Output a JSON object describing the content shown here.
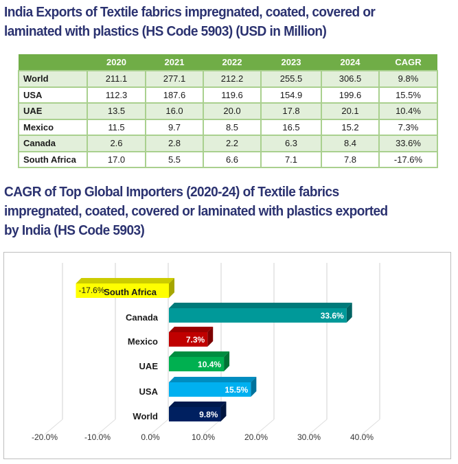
{
  "table_section": {
    "title_line1": "India Exports of Textile fabrics impregnated, coated, covered or",
    "title_line2": "laminated with plastics (HS Code 5903) (USD in Million)",
    "columns": [
      "",
      "2020",
      "2021",
      "2022",
      "2023",
      "2024",
      "CAGR"
    ],
    "rows": [
      {
        "label": "World",
        "values": [
          "211.1",
          "277.1",
          "212.2",
          "255.5",
          "306.5",
          "9.8%"
        ]
      },
      {
        "label": "USA",
        "values": [
          "112.3",
          "187.6",
          "119.6",
          "154.9",
          "199.6",
          "15.5%"
        ]
      },
      {
        "label": "UAE",
        "values": [
          "13.5",
          "16.0",
          "20.0",
          "17.8",
          "20.1",
          "10.4%"
        ]
      },
      {
        "label": "Mexico",
        "values": [
          "11.5",
          "9.7",
          "8.5",
          "16.5",
          "15.2",
          "7.3%"
        ]
      },
      {
        "label": "Canada",
        "values": [
          "2.6",
          "2.8",
          "2.2",
          "6.3",
          "8.4",
          "33.6%"
        ]
      },
      {
        "label": "South Africa",
        "values": [
          "17.0",
          "5.5",
          "6.6",
          "7.1",
          "7.8",
          "-17.6%"
        ]
      }
    ],
    "colors": {
      "header_bg": "#70ad47",
      "header_text": "#ffffff",
      "band": "#e2efda",
      "border": "#a9d08e"
    }
  },
  "chart_section": {
    "title_line1": "CAGR of Top Global Importers (2020-24) of Textile fabrics",
    "title_line2": "impregnated, coated, covered or laminated with plastics exported",
    "title_line3": "by India (HS Code 5903)"
  },
  "chart_data": {
    "type": "bar",
    "orientation": "horizontal",
    "style": "3d",
    "title": "CAGR of Top Global Importers (2020-24) of Textile fabrics impregnated, coated, covered or laminated with plastics exported by India (HS Code 5903)",
    "categories": [
      "South Africa",
      "Canada",
      "Mexico",
      "UAE",
      "USA",
      "World"
    ],
    "values": [
      -17.6,
      33.6,
      7.3,
      10.4,
      15.5,
      9.8
    ],
    "data_labels": [
      "-17.6%",
      "33.6%",
      "7.3%",
      "10.4%",
      "15.5%",
      "9.8%"
    ],
    "bar_colors": [
      "#ffff00",
      "#009999",
      "#c00000",
      "#00b050",
      "#00b0f0",
      "#002060"
    ],
    "label_colors": [
      "#1a1a1a",
      "#ffffff",
      "#ffffff",
      "#ffffff",
      "#ffffff",
      "#ffffff"
    ],
    "xlim": [
      -20,
      40
    ],
    "xticks": [
      -20,
      -10,
      0,
      10,
      20,
      30,
      40
    ],
    "xtick_labels": [
      "-20.0%",
      "-10.0%",
      "0.0%",
      "10.0%",
      "20.0%",
      "30.0%",
      "40.0%"
    ],
    "xlabel": "",
    "ylabel": "",
    "grid": true,
    "legend": "none"
  }
}
